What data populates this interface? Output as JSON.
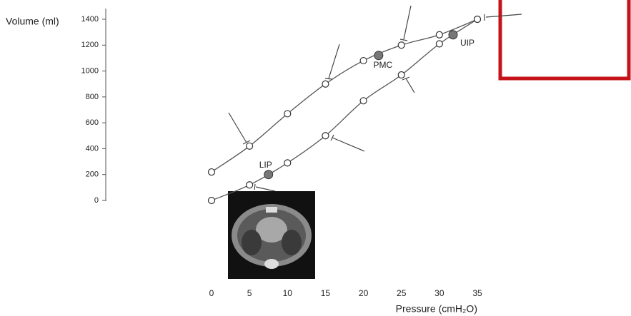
{
  "chart_data": {
    "type": "line",
    "ylabel": "Volume (ml)",
    "xlabel": "Pressure (cmH₂O)",
    "x": [
      0,
      5,
      10,
      15,
      20,
      25,
      30,
      35
    ],
    "series": [
      {
        "color": "#555555",
        "values": [
          220,
          420,
          670,
          900,
          1080,
          1200,
          1280,
          1400
        ]
      },
      {
        "color": "#555555",
        "values": [
          0,
          120,
          290,
          500,
          770,
          970,
          1210,
          1400
        ]
      }
    ],
    "annotations": [
      {
        "label": "LIP",
        "x": 7.5,
        "y": 200
      },
      {
        "label": "PMC",
        "x": 22,
        "y": 1120
      },
      {
        "label": "UIP",
        "x": 31.8,
        "y": 1280
      }
    ],
    "xlim": [
      0,
      35
    ],
    "ylim": [
      0,
      1400
    ],
    "xticks": [
      0,
      5,
      10,
      15,
      20,
      25,
      30,
      35
    ],
    "yticks": [
      0,
      200,
      400,
      600,
      800,
      1000,
      1200,
      1400
    ]
  }
}
